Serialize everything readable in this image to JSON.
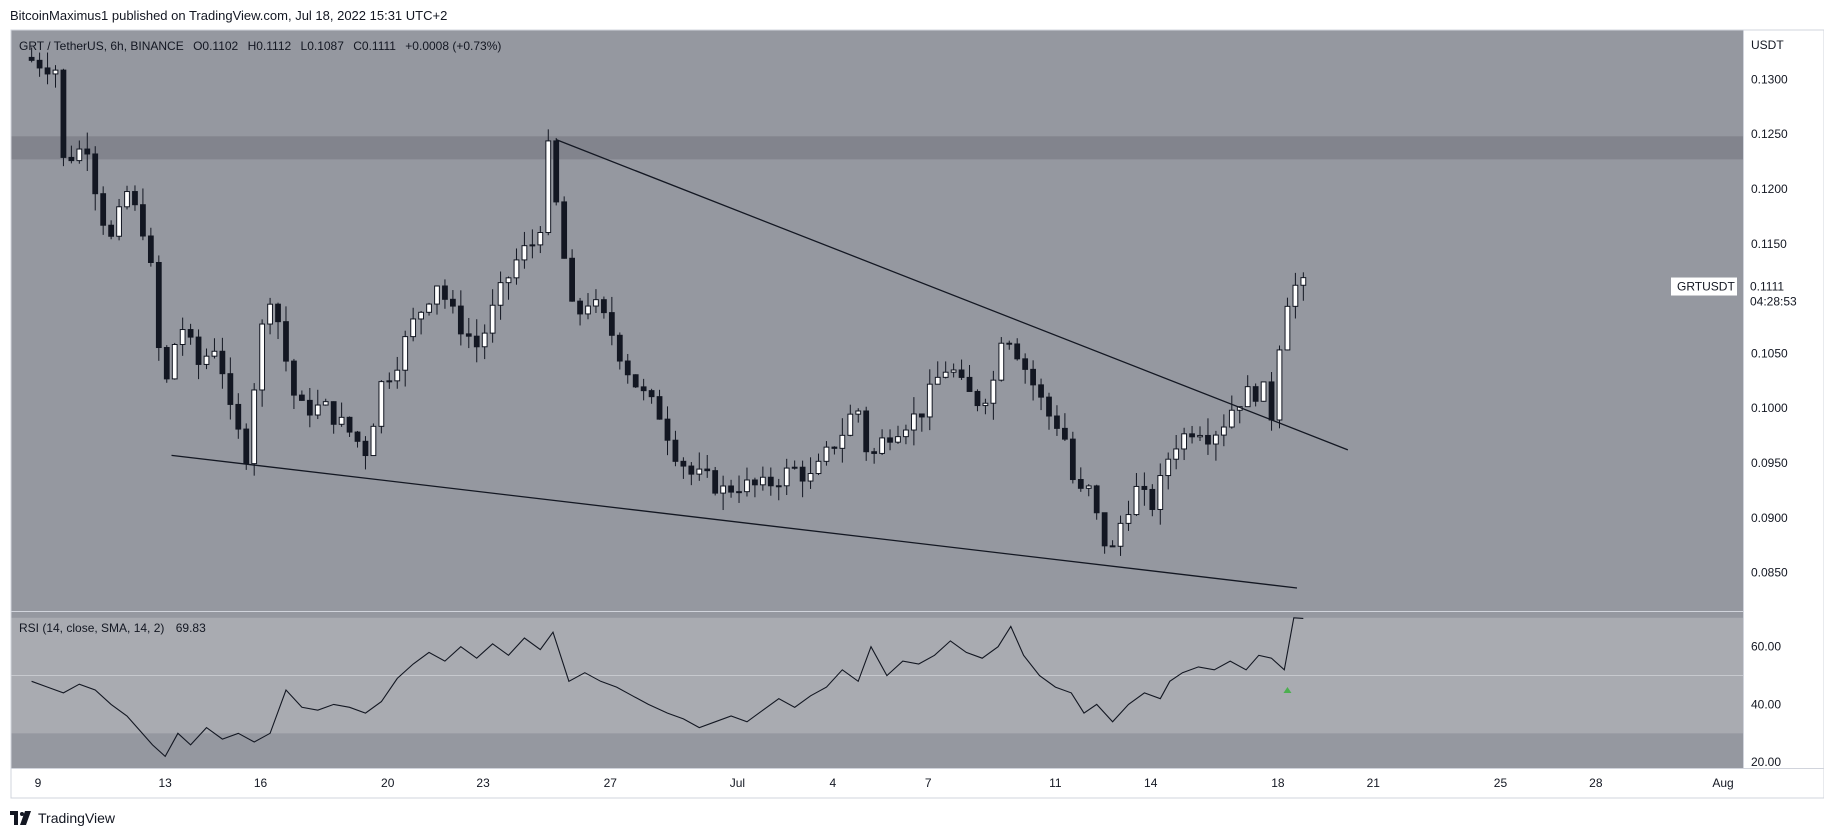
{
  "header": {
    "published_text": "BitcoinMaximus1 published on TradingView.com, Jul 18, 2022 15:31 UTC+2"
  },
  "footer": {
    "brand": "TradingView"
  },
  "colors": {
    "chart_bg": "#9598a0",
    "rsi_band": "#a9abb1",
    "resistance_zone": "#7f828b",
    "candle_up": "#ffffff",
    "candle_down": "#131722",
    "line": "#131722",
    "signal_green": "#4caf50"
  },
  "chart_data": [
    {
      "type": "candlestick",
      "legend": {
        "symbol": "GRT / TetherUS, 6h, BINANCE",
        "o_label": "O",
        "o_value": "0.1102",
        "h_label": "H",
        "h_value": "0.1112",
        "l_label": "L",
        "l_value": "0.1087",
        "c_label": "C",
        "c_value": "0.1111",
        "change": "+0.0008 (+0.73%)"
      },
      "currency": "USDT",
      "ylim": [
        0.0815,
        0.1345
      ],
      "y_ticks": [
        0.13,
        0.125,
        0.12,
        0.115,
        0.11,
        0.105,
        0.1,
        0.095,
        0.09,
        0.085
      ],
      "y_tick_labels": [
        "0.1300",
        "0.1250",
        "0.1200",
        "0.1150",
        "0.1100",
        "0.1050",
        "0.1000",
        "0.0950",
        "0.0900",
        "0.0850"
      ],
      "price_label": {
        "symbol": "GRTUSDT",
        "price": "0.1111",
        "countdown": "04:28:53",
        "value": 0.1111
      },
      "resistance_zone": [
        0.1227,
        0.1248
      ],
      "x_ticks": [
        {
          "day": 9,
          "label": "9"
        },
        {
          "day": 13,
          "label": "13"
        },
        {
          "day": 16,
          "label": "16"
        },
        {
          "day": 20,
          "label": "20"
        },
        {
          "day": 23,
          "label": "23"
        },
        {
          "day": 27,
          "label": "27"
        },
        {
          "day": 31,
          "label": "Jul"
        },
        {
          "day": 34,
          "label": "4"
        },
        {
          "day": 37,
          "label": "7"
        },
        {
          "day": 41,
          "label": "11"
        },
        {
          "day": 44,
          "label": "14"
        },
        {
          "day": 48,
          "label": "18"
        },
        {
          "day": 51,
          "label": "21"
        },
        {
          "day": 55,
          "label": "25"
        },
        {
          "day": 58,
          "label": "28"
        },
        {
          "day": 62,
          "label": "Aug"
        }
      ],
      "x_start_day": 8.8,
      "x_end_day": 62.0,
      "trendlines": [
        {
          "name": "descending-resistance",
          "from": [
            25.3,
            0.1245
          ],
          "to": [
            50.2,
            0.0962
          ]
        },
        {
          "name": "descending-support",
          "from": [
            13.2,
            0.0957
          ],
          "to": [
            48.6,
            0.0836
          ]
        }
      ],
      "anchors": [
        [
          8.8,
          0.132
        ],
        [
          9.8,
          0.131
        ],
        [
          10.0,
          0.1225
        ],
        [
          10.8,
          0.124
        ],
        [
          11.2,
          0.118
        ],
        [
          11.6,
          0.115
        ],
        [
          12.0,
          0.12
        ],
        [
          12.7,
          0.1155
        ],
        [
          13.2,
          0.101
        ],
        [
          13.7,
          0.108
        ],
        [
          14.3,
          0.104
        ],
        [
          14.9,
          0.106
        ],
        [
          15.3,
          0.0995
        ],
        [
          15.8,
          0.0958
        ],
        [
          16.2,
          0.106
        ],
        [
          16.6,
          0.111
        ],
        [
          17.0,
          0.105
        ],
        [
          17.4,
          0.1
        ],
        [
          18.3,
          0.1
        ],
        [
          19.0,
          0.098
        ],
        [
          19.6,
          0.096
        ],
        [
          20.0,
          0.102
        ],
        [
          20.5,
          0.104
        ],
        [
          21.0,
          0.1075
        ],
        [
          21.8,
          0.1115
        ],
        [
          22.4,
          0.108
        ],
        [
          23.1,
          0.1055
        ],
        [
          23.7,
          0.11
        ],
        [
          24.4,
          0.114
        ],
        [
          25.0,
          0.1155
        ],
        [
          25.3,
          0.1235
        ],
        [
          25.7,
          0.1155
        ],
        [
          26.1,
          0.108
        ],
        [
          26.6,
          0.11
        ],
        [
          27.2,
          0.1075
        ],
        [
          27.7,
          0.104
        ],
        [
          28.2,
          0.1015
        ],
        [
          28.8,
          0.0995
        ],
        [
          29.3,
          0.096
        ],
        [
          29.8,
          0.094
        ],
        [
          30.3,
          0.0935
        ],
        [
          30.8,
          0.0925
        ],
        [
          31.3,
          0.093
        ],
        [
          32.0,
          0.0928
        ],
        [
          32.5,
          0.0935
        ],
        [
          33.0,
          0.0945
        ],
        [
          33.6,
          0.0935
        ],
        [
          34.1,
          0.096
        ],
        [
          34.6,
          0.098
        ],
        [
          35.0,
          0.1005
        ],
        [
          35.4,
          0.095
        ],
        [
          35.9,
          0.0975
        ],
        [
          36.4,
          0.0985
        ],
        [
          37.0,
          0.0995
        ],
        [
          37.5,
          0.1025
        ],
        [
          37.9,
          0.104
        ],
        [
          38.4,
          0.1015
        ],
        [
          38.9,
          0.1005
        ],
        [
          39.3,
          0.1025
        ],
        [
          39.6,
          0.1075
        ],
        [
          40.0,
          0.1055
        ],
        [
          40.5,
          0.1025
        ],
        [
          41.0,
          0.0995
        ],
        [
          41.5,
          0.098
        ],
        [
          41.9,
          0.092
        ],
        [
          42.3,
          0.0925
        ],
        [
          42.7,
          0.0885
        ],
        [
          43.0,
          0.0865
        ],
        [
          43.3,
          0.0895
        ],
        [
          43.6,
          0.0915
        ],
        [
          43.9,
          0.093
        ],
        [
          44.2,
          0.0905
        ],
        [
          44.6,
          0.0935
        ],
        [
          44.9,
          0.0965
        ],
        [
          45.3,
          0.0975
        ],
        [
          45.7,
          0.0985
        ],
        [
          46.1,
          0.0975
        ],
        [
          46.5,
          0.0985
        ],
        [
          46.9,
          0.1005
        ],
        [
          47.4,
          0.1015
        ],
        [
          47.8,
          0.1015
        ],
        [
          48.1,
          0.099
        ],
        [
          48.4,
          0.1095
        ],
        [
          48.6,
          0.1102
        ],
        [
          48.8,
          0.1111
        ]
      ]
    },
    {
      "type": "line",
      "legend": {
        "label": "RSI (14, close, SMA, 14, 2)",
        "value": "69.83"
      },
      "ylim": [
        18,
        72
      ],
      "band": [
        30,
        70
      ],
      "mid": 50,
      "y_ticks": [
        60,
        40,
        20
      ],
      "y_tick_labels": [
        "60.00",
        "40.00",
        "20.00"
      ],
      "signal_marker": {
        "day": 48.3,
        "value": 45
      },
      "series": [
        {
          "points": [
            [
              8.8,
              48
            ],
            [
              9.3,
              46
            ],
            [
              9.8,
              44
            ],
            [
              10.3,
              47
            ],
            [
              10.8,
              45
            ],
            [
              11.3,
              40
            ],
            [
              11.8,
              36
            ],
            [
              12.2,
              31
            ],
            [
              12.6,
              26
            ],
            [
              13.0,
              22
            ],
            [
              13.4,
              30
            ],
            [
              13.8,
              26
            ],
            [
              14.3,
              32
            ],
            [
              14.8,
              28
            ],
            [
              15.3,
              30
            ],
            [
              15.8,
              27
            ],
            [
              16.3,
              30
            ],
            [
              16.8,
              45
            ],
            [
              17.3,
              39
            ],
            [
              17.8,
              38
            ],
            [
              18.3,
              40
            ],
            [
              18.8,
              39
            ],
            [
              19.3,
              37
            ],
            [
              19.8,
              41
            ],
            [
              20.3,
              49
            ],
            [
              20.8,
              54
            ],
            [
              21.3,
              58
            ],
            [
              21.8,
              55
            ],
            [
              22.3,
              60
            ],
            [
              22.8,
              56
            ],
            [
              23.3,
              61
            ],
            [
              23.8,
              57
            ],
            [
              24.3,
              63
            ],
            [
              24.8,
              59
            ],
            [
              25.2,
              65
            ],
            [
              25.7,
              48
            ],
            [
              26.2,
              51
            ],
            [
              26.7,
              48
            ],
            [
              27.2,
              46
            ],
            [
              27.7,
              43
            ],
            [
              28.2,
              40
            ],
            [
              28.8,
              37
            ],
            [
              29.3,
              35
            ],
            [
              29.8,
              32
            ],
            [
              30.3,
              34
            ],
            [
              30.8,
              36
            ],
            [
              31.3,
              34
            ],
            [
              31.8,
              38
            ],
            [
              32.3,
              42
            ],
            [
              32.8,
              39
            ],
            [
              33.3,
              43
            ],
            [
              33.8,
              46
            ],
            [
              34.3,
              52
            ],
            [
              34.8,
              48
            ],
            [
              35.2,
              60
            ],
            [
              35.7,
              50
            ],
            [
              36.2,
              55
            ],
            [
              36.7,
              54
            ],
            [
              37.2,
              57
            ],
            [
              37.7,
              62
            ],
            [
              38.2,
              58
            ],
            [
              38.7,
              56
            ],
            [
              39.2,
              60
            ],
            [
              39.6,
              67
            ],
            [
              40.0,
              57
            ],
            [
              40.5,
              50
            ],
            [
              41.0,
              46
            ],
            [
              41.5,
              44
            ],
            [
              41.9,
              37
            ],
            [
              42.3,
              40
            ],
            [
              42.8,
              34
            ],
            [
              43.3,
              40
            ],
            [
              43.8,
              44
            ],
            [
              44.3,
              42
            ],
            [
              44.6,
              48
            ],
            [
              45.0,
              51
            ],
            [
              45.5,
              53
            ],
            [
              46.0,
              52
            ],
            [
              46.5,
              55
            ],
            [
              47.0,
              52
            ],
            [
              47.4,
              57
            ],
            [
              47.8,
              56
            ],
            [
              48.2,
              52
            ],
            [
              48.5,
              70
            ],
            [
              48.8,
              69.8
            ]
          ]
        }
      ]
    }
  ]
}
